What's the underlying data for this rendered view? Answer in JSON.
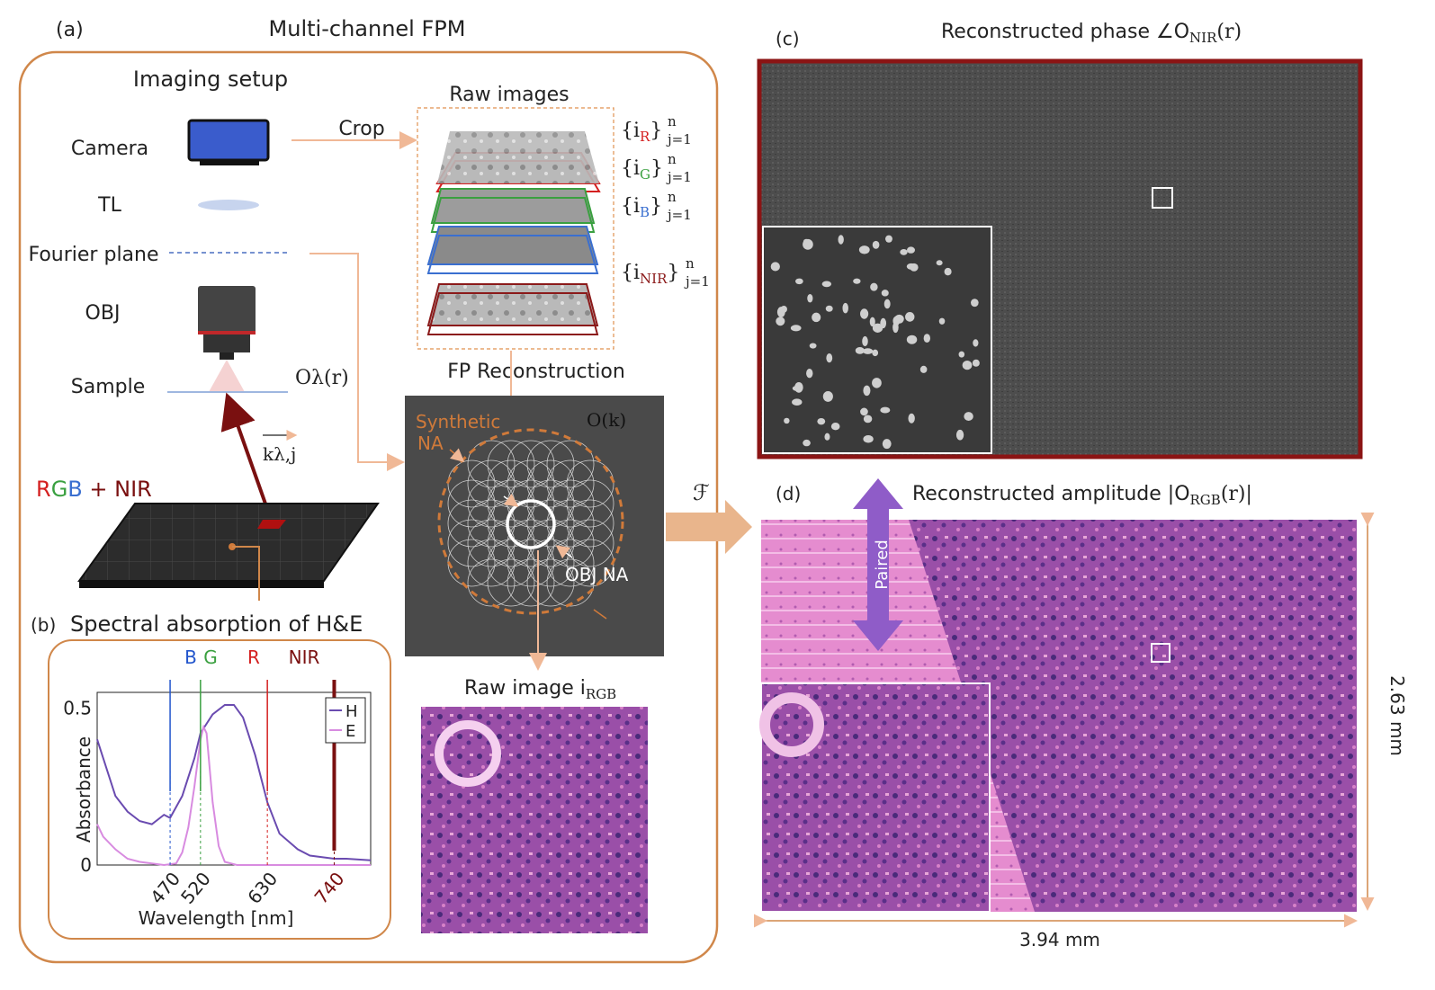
{
  "panel_a": {
    "tag": "(a)",
    "title": "Multi-channel FPM",
    "setup_title": "Imaging setup",
    "labels": {
      "camera": "Camera",
      "tl": "TL",
      "fourier_plane": "Fourier plane",
      "obj": "OBJ",
      "sample": "Sample",
      "rgb_r": "R",
      "rgb_g": "G",
      "rgb_b": "B",
      "plus_nir": " + NIR",
      "crop": "Crop",
      "raw_images": "Raw images",
      "fp_reconstruction": "FP Reconstruction",
      "synthetic": "Synthetic",
      "na": "NA",
      "obj_na": "OBJ NA",
      "ok": "O(k)",
      "olambda": "Oλ(r)",
      "kvec": "kλ,j",
      "fourier_symbol": "ℱ",
      "raw_image_rgb": "Raw image i",
      "raw_image_rgb_sub": "RGB"
    },
    "stacks": [
      {
        "base": "{i",
        "sub": "R",
        "tail": "}",
        "sup": "n",
        "sub2": "j=1",
        "color": "#d42020"
      },
      {
        "base": "{i",
        "sub": "G",
        "tail": "}",
        "sup": "n",
        "sub2": "j=1",
        "color": "#3aa040"
      },
      {
        "base": "{i",
        "sub": "B",
        "tail": "}",
        "sup": "n",
        "sub2": "j=1",
        "color": "#3a6fd0"
      },
      {
        "base": "{i",
        "sub": "NIR",
        "tail": "}",
        "sup": "n",
        "sub2": "j=1",
        "color": "#8b1a1a"
      }
    ]
  },
  "panel_b": {
    "tag": "(b)",
    "title": "Spectral absorption of H&E",
    "markers": [
      "B",
      "G",
      "R",
      "NIR"
    ]
  },
  "chart_data": {
    "type": "line",
    "xlabel": "Wavelength [nm]",
    "ylabel": "Absorbance",
    "xlim": [
      350,
      800
    ],
    "ylim": [
      0,
      0.55
    ],
    "yticks": [
      0,
      0.5
    ],
    "xticks": [
      470,
      520,
      630,
      740
    ],
    "legend_position": "top-right",
    "series": [
      {
        "name": "H",
        "color": "#6a4bb0",
        "x": [
          350,
          360,
          380,
          400,
          420,
          440,
          460,
          470,
          490,
          510,
          520,
          540,
          560,
          575,
          590,
          610,
          630,
          650,
          680,
          700,
          720,
          740,
          760,
          800
        ],
        "y": [
          0.4,
          0.34,
          0.22,
          0.17,
          0.14,
          0.13,
          0.16,
          0.15,
          0.22,
          0.34,
          0.42,
          0.48,
          0.51,
          0.51,
          0.47,
          0.35,
          0.2,
          0.1,
          0.05,
          0.03,
          0.025,
          0.02,
          0.02,
          0.015
        ]
      },
      {
        "name": "E",
        "color": "#d88be0",
        "x": [
          350,
          360,
          380,
          400,
          420,
          460,
          480,
          490,
          500,
          510,
          520,
          525,
          530,
          540,
          550,
          560,
          580,
          620,
          700,
          800
        ],
        "y": [
          0.13,
          0.09,
          0.05,
          0.02,
          0.01,
          0.0,
          0.005,
          0.04,
          0.12,
          0.25,
          0.4,
          0.44,
          0.42,
          0.2,
          0.06,
          0.01,
          0.0,
          0.0,
          0.0,
          0.0
        ]
      }
    ],
    "marker_colors": {
      "B": "#2255cc",
      "G": "#3aa040",
      "R": "#d42020",
      "NIR": "#7a1010"
    }
  },
  "panel_c": {
    "tag": "(c)",
    "title": "Reconstructed phase ∠O",
    "title_sub": "NIR",
    "title_tail": "(r)"
  },
  "panel_d": {
    "tag": "(d)",
    "title": "Reconstructed amplitude |O",
    "title_sub": "RGB",
    "title_tail": "(r)|",
    "paired": "Paired",
    "width_label": "3.94 mm",
    "height_label": "2.63 mm"
  }
}
